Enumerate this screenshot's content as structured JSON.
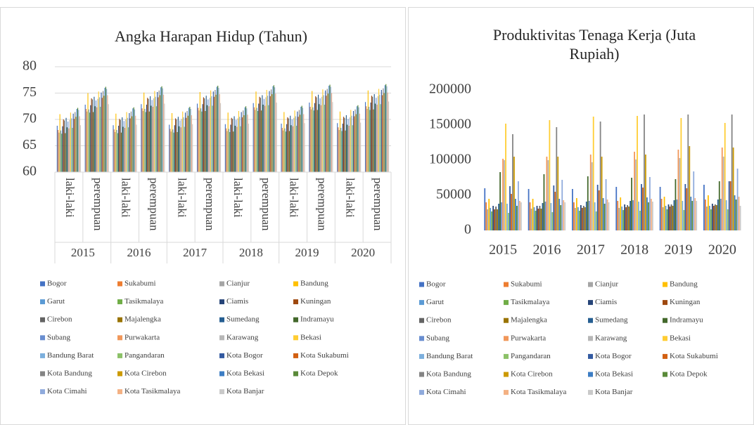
{
  "chart_data": [
    {
      "type": "bar",
      "title": "Angka Harapan Hidup (Tahun)",
      "categories": [
        "laki-laki",
        "perempuan",
        "laki-laki",
        "perempuan",
        "laki-laki",
        "perempuan",
        "laki-laki",
        "perempuan",
        "laki-laki",
        "perempuan",
        "laki-laki",
        "perempuan"
      ],
      "groups": [
        "2015",
        "2016",
        "2017",
        "2018",
        "2019",
        "2020"
      ],
      "ylim": [
        60,
        80
      ],
      "yticks": [
        60,
        65,
        70,
        75,
        80
      ],
      "grid": true,
      "series": [
        {
          "name": "Bogor",
          "color": "#4472C4",
          "values": [
            68.8,
            72.8,
            68.9,
            72.9,
            69,
            73,
            69.1,
            73.1,
            69.2,
            73.2,
            69.3,
            73.3
          ]
        },
        {
          "name": "Sukabumi",
          "color": "#ED7D31",
          "values": [
            68,
            72,
            68.1,
            72.1,
            68.2,
            72.2,
            68.3,
            72.3,
            68.4,
            72.4,
            68.5,
            72.5
          ]
        },
        {
          "name": "Cianjur",
          "color": "#A5A5A5",
          "values": [
            67.5,
            71.5,
            67.6,
            71.6,
            67.7,
            71.7,
            67.8,
            71.8,
            67.9,
            71.9,
            68,
            72
          ]
        },
        {
          "name": "Bandung",
          "color": "#FFC000",
          "values": [
            71,
            75,
            71.1,
            75.1,
            71.2,
            75.2,
            71.3,
            75.3,
            71.4,
            75.4,
            71.5,
            75.5
          ]
        },
        {
          "name": "Garut",
          "color": "#5B9BD5",
          "values": [
            67.9,
            71.9,
            68,
            72,
            68.1,
            72.1,
            68.2,
            72.2,
            68.3,
            72.3,
            68.4,
            72.4
          ]
        },
        {
          "name": "Tasikmalaya",
          "color": "#70AD47",
          "values": [
            67.3,
            71.3,
            67.4,
            71.4,
            67.5,
            71.5,
            67.6,
            71.6,
            67.7,
            71.7,
            67.8,
            71.8
          ]
        },
        {
          "name": "Ciamis",
          "color": "#264478",
          "values": [
            68.7,
            72.7,
            68.8,
            72.8,
            68.9,
            72.9,
            69,
            73,
            69.1,
            73.1,
            69.2,
            73.2
          ]
        },
        {
          "name": "Kuningan",
          "color": "#9E480E",
          "values": [
            70,
            74,
            70.1,
            74.1,
            70.2,
            74.2,
            70.3,
            74.3,
            70.4,
            74.4,
            70.5,
            74.5
          ]
        },
        {
          "name": "Cirebon",
          "color": "#636363",
          "values": [
            69.8,
            73.8,
            69.9,
            73.9,
            70,
            74,
            70.1,
            74.1,
            70.2,
            74.2,
            70.3,
            74.3
          ]
        },
        {
          "name": "Majalengka",
          "color": "#997300",
          "values": [
            67.4,
            71.4,
            67.5,
            71.5,
            67.6,
            71.6,
            67.7,
            71.7,
            67.8,
            71.8,
            67.9,
            71.9
          ]
        },
        {
          "name": "Sumedang",
          "color": "#255E91",
          "values": [
            70.3,
            74.3,
            70.4,
            74.4,
            70.5,
            74.5,
            70.6,
            74.6,
            70.7,
            74.7,
            70.8,
            74.8
          ]
        },
        {
          "name": "Indramayu",
          "color": "#43682B",
          "values": [
            68.5,
            72.5,
            68.6,
            72.6,
            68.7,
            72.7,
            68.8,
            72.8,
            68.9,
            72.9,
            69,
            73
          ]
        },
        {
          "name": "Subang",
          "color": "#698ED0",
          "values": [
            69.6,
            73.6,
            69.7,
            73.7,
            69.8,
            73.8,
            69.9,
            73.9,
            70,
            74,
            70.1,
            74.1
          ]
        },
        {
          "name": "Purwakarta",
          "color": "#F1975A",
          "values": [
            68.3,
            72.3,
            68.4,
            72.4,
            68.5,
            72.5,
            68.6,
            72.6,
            68.7,
            72.7,
            68.8,
            72.8
          ]
        },
        {
          "name": "Karawang",
          "color": "#B7B7B7",
          "values": [
            69.9,
            73.9,
            70,
            74,
            70.1,
            74.1,
            70.2,
            74.2,
            70.3,
            74.3,
            70.4,
            74.4
          ]
        },
        {
          "name": "Bekasi",
          "color": "#FFCD33",
          "values": [
            71.3,
            75.3,
            71.4,
            75.4,
            71.5,
            75.5,
            71.6,
            75.6,
            71.7,
            75.7,
            71.8,
            75.8
          ]
        },
        {
          "name": "Bandung Barat",
          "color": "#7CAFDD",
          "values": [
            70.2,
            74.2,
            70.3,
            74.3,
            70.4,
            74.4,
            70.5,
            74.5,
            70.6,
            74.6,
            70.7,
            74.7
          ]
        },
        {
          "name": "Pangandaran",
          "color": "#8CC168",
          "values": [
            68.4,
            72.4,
            68.5,
            72.5,
            68.6,
            72.6,
            68.7,
            72.7,
            68.8,
            72.8,
            68.9,
            72.9
          ]
        },
        {
          "name": "Kota Bogor",
          "color": "#335AA1",
          "values": [
            71.1,
            75.1,
            71.2,
            75.2,
            71.3,
            75.3,
            71.4,
            75.4,
            71.5,
            75.5,
            71.6,
            75.6
          ]
        },
        {
          "name": "Kota Sukabumi",
          "color": "#D26012",
          "values": [
            70.1,
            74.1,
            70.2,
            74.2,
            70.3,
            74.3,
            70.4,
            74.4,
            70.5,
            74.5,
            70.6,
            74.6
          ]
        },
        {
          "name": "Kota Bandung",
          "color": "#848484",
          "values": [
            71.4,
            75.4,
            71.5,
            75.5,
            71.6,
            75.6,
            71.7,
            75.7,
            71.8,
            75.8,
            71.9,
            75.9
          ]
        },
        {
          "name": "Kota Cirebon",
          "color": "#CC9A00",
          "values": [
            70.5,
            74.5,
            70.6,
            74.6,
            70.7,
            74.7,
            70.8,
            74.8,
            70.9,
            74.9,
            71,
            75
          ]
        },
        {
          "name": "Kota Bekasi",
          "color": "#3C7DC4",
          "values": [
            72,
            76,
            72.1,
            76.1,
            72.2,
            76.2,
            72.3,
            76.3,
            72.4,
            76.4,
            72.5,
            76.5
          ]
        },
        {
          "name": "Kota Depok",
          "color": "#5A8A39",
          "values": [
            72.2,
            76.2,
            72.3,
            76.3,
            72.4,
            76.4,
            72.5,
            76.5,
            72.6,
            76.6,
            72.7,
            76.7
          ]
        },
        {
          "name": "Kota Cimahi",
          "color": "#8FAADC",
          "values": [
            71.8,
            75.8,
            71.9,
            75.9,
            72,
            76,
            72.1,
            76.1,
            72.2,
            76.2,
            72.3,
            76.3
          ]
        },
        {
          "name": "Kota Tasikmalaya",
          "color": "#F4B183",
          "values": [
            70.6,
            74.6,
            70.7,
            74.7,
            70.8,
            74.8,
            70.9,
            74.9,
            71,
            75,
            71.1,
            75.1
          ]
        },
        {
          "name": "Kota Banjar",
          "color": "#C9C9C9",
          "values": [
            68.9,
            72.9,
            69,
            73,
            69.1,
            73.1,
            69.2,
            73.2,
            69.3,
            73.3,
            69.4,
            73.4
          ]
        }
      ]
    },
    {
      "type": "bar",
      "title": "Produktivitas Tenaga Kerja (Juta Rupiah)",
      "categories": [
        "2015",
        "2016",
        "2017",
        "2018",
        "2019",
        "2020"
      ],
      "ylim": [
        0,
        200000
      ],
      "yticks": [
        0,
        50000,
        100000,
        150000,
        200000
      ],
      "grid": false,
      "series": [
        {
          "name": "Bogor",
          "color": "#4472C4",
          "values": [
            60000,
            59000,
            59000,
            62000,
            62000,
            65000
          ]
        },
        {
          "name": "Sukabumi",
          "color": "#ED7D31",
          "values": [
            40000,
            40000,
            40000,
            42000,
            45000,
            44000
          ]
        },
        {
          "name": "Cianjur",
          "color": "#A5A5A5",
          "values": [
            30000,
            31000,
            32000,
            32000,
            33000,
            34000
          ]
        },
        {
          "name": "Bandung",
          "color": "#FFC000",
          "values": [
            45000,
            45000,
            46000,
            47000,
            48000,
            50000
          ]
        },
        {
          "name": "Garut",
          "color": "#5B9BD5",
          "values": [
            32000,
            33000,
            33000,
            34000,
            35000,
            35000
          ]
        },
        {
          "name": "Tasikmalaya",
          "color": "#70AD47",
          "values": [
            27000,
            28000,
            28000,
            29000,
            30000,
            30000
          ]
        },
        {
          "name": "Ciamis",
          "color": "#264478",
          "values": [
            35000,
            35000,
            36000,
            37000,
            37000,
            38000
          ]
        },
        {
          "name": "Kuningan",
          "color": "#9E480E",
          "values": [
            30000,
            31000,
            32000,
            33000,
            34000,
            35000
          ]
        },
        {
          "name": "Cirebon",
          "color": "#636363",
          "values": [
            34000,
            35000,
            35000,
            36000,
            37000,
            37000
          ]
        },
        {
          "name": "Majalengka",
          "color": "#997300",
          "values": [
            30000,
            31000,
            33000,
            34000,
            35000,
            36000
          ]
        },
        {
          "name": "Sumedang",
          "color": "#255E91",
          "values": [
            38000,
            39000,
            41000,
            42000,
            43000,
            44000
          ]
        },
        {
          "name": "Indramayu",
          "color": "#43682B",
          "values": [
            83000,
            80000,
            77000,
            75000,
            73000,
            70000
          ]
        },
        {
          "name": "Subang",
          "color": "#698ED0",
          "values": [
            40000,
            41000,
            42000,
            43000,
            44000,
            45000
          ]
        },
        {
          "name": "Purwakarta",
          "color": "#F1975A",
          "values": [
            102000,
            105000,
            108000,
            112000,
            115000,
            118000
          ]
        },
        {
          "name": "Karawang",
          "color": "#B7B7B7",
          "values": [
            100000,
            100000,
            97000,
            101000,
            103000,
            105000
          ]
        },
        {
          "name": "Bekasi",
          "color": "#FFCD33",
          "values": [
            152000,
            157000,
            162000,
            163000,
            160000,
            153000
          ]
        },
        {
          "name": "Bandung Barat",
          "color": "#7CAFDD",
          "values": [
            38000,
            39000,
            40000,
            41000,
            42000,
            43000
          ]
        },
        {
          "name": "Pangandaran",
          "color": "#8CC168",
          "values": [
            25000,
            26000,
            27000,
            28000,
            29000,
            30000
          ]
        },
        {
          "name": "Kota Bogor",
          "color": "#335AA1",
          "values": [
            63000,
            64000,
            65000,
            66000,
            66000,
            70000
          ]
        },
        {
          "name": "Kota Sukabumi",
          "color": "#D26012",
          "values": [
            52000,
            55000,
            57000,
            61000,
            60000,
            70000
          ]
        },
        {
          "name": "Kota Bandung",
          "color": "#848484",
          "values": [
            137000,
            147000,
            155000,
            165000,
            165000,
            165000
          ]
        },
        {
          "name": "Kota Cirebon",
          "color": "#CC9A00",
          "values": [
            105000,
            105000,
            105000,
            108000,
            120000,
            118000
          ]
        },
        {
          "name": "Kota Bekasi",
          "color": "#3C7DC4",
          "values": [
            45000,
            45000,
            46000,
            47000,
            48000,
            50000
          ]
        },
        {
          "name": "Kota Depok",
          "color": "#5A8A39",
          "values": [
            35000,
            36000,
            38000,
            40000,
            42000,
            44000
          ]
        },
        {
          "name": "Kota Cimahi",
          "color": "#8FAADC",
          "values": [
            70000,
            72000,
            73000,
            76000,
            84000,
            88000
          ]
        },
        {
          "name": "Kota Tasikmalaya",
          "color": "#F4B183",
          "values": [
            42000,
            43000,
            44000,
            45000,
            46000,
            48000
          ]
        },
        {
          "name": "Kota Banjar",
          "color": "#C9C9C9",
          "values": [
            40000,
            40000,
            40000,
            41000,
            42000,
            35000
          ]
        }
      ]
    }
  ]
}
